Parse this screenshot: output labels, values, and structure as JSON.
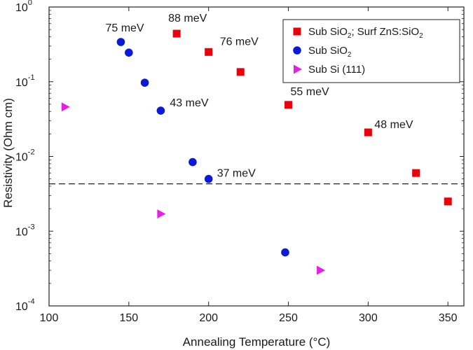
{
  "chart_data": {
    "type": "scatter",
    "title": "",
    "xlabel": "Annealing Temperature (°C)",
    "ylabel": "Resistivity (Ohm cm)",
    "xlim": [
      100,
      360
    ],
    "ylim": [
      0.0001,
      1
    ],
    "yscale": "log",
    "x_ticks": [
      100,
      150,
      200,
      250,
      300,
      350
    ],
    "y_ticks": [
      {
        "value": 1,
        "base": "10",
        "exp": "0"
      },
      {
        "value": 0.1,
        "base": "10",
        "exp": "-1"
      },
      {
        "value": 0.01,
        "base": "10",
        "exp": "-2"
      },
      {
        "value": 0.001,
        "base": "10",
        "exp": "-3"
      },
      {
        "value": 0.0001,
        "base": "10",
        "exp": "-4"
      }
    ],
    "reference_line": {
      "y": 0.0043,
      "style": "dashed"
    },
    "series": [
      {
        "name": "Sub SiO2; Surf ZnS:SiO2",
        "legend_parts": [
          "Sub SiO",
          "2",
          "; Surf ZnS:SiO",
          "2"
        ],
        "marker": "square",
        "color": "#e8000b",
        "points": [
          [
            180,
            0.44
          ],
          [
            200,
            0.25
          ],
          [
            220,
            0.135
          ],
          [
            250,
            0.049
          ],
          [
            300,
            0.021
          ],
          [
            330,
            0.006
          ],
          [
            350,
            0.0025
          ]
        ]
      },
      {
        "name": "Sub SiO2",
        "legend_parts": [
          "Sub SiO",
          "2"
        ],
        "marker": "circle",
        "color": "#0c1ad8",
        "points": [
          [
            145,
            0.34
          ],
          [
            150,
            0.245
          ],
          [
            160,
            0.097
          ],
          [
            170,
            0.041
          ],
          [
            190,
            0.0084
          ],
          [
            200,
            0.005
          ],
          [
            248,
            0.00052
          ]
        ]
      },
      {
        "name": "Sub Si (111)",
        "legend_parts": [
          "Sub Si (111)"
        ],
        "marker": "triangle-right",
        "color": "#e61ee6",
        "points": [
          [
            110,
            0.046
          ],
          [
            170,
            0.0017
          ],
          [
            270,
            0.0003
          ]
        ]
      }
    ],
    "annotations": [
      {
        "text": "88 meV",
        "x": 180,
        "y": 0.44
      },
      {
        "text": "76 meV",
        "x": 200,
        "y": 0.25
      },
      {
        "text": "75 meV",
        "x": 145,
        "y": 0.34
      },
      {
        "text": "55 meV",
        "x": 250,
        "y": 0.049
      },
      {
        "text": "43 meV",
        "x": 170,
        "y": 0.041
      },
      {
        "text": "48 meV",
        "x": 300,
        "y": 0.021
      },
      {
        "text": "37 meV",
        "x": 200,
        "y": 0.005
      }
    ],
    "legend_position": "top-right",
    "grid": false
  }
}
